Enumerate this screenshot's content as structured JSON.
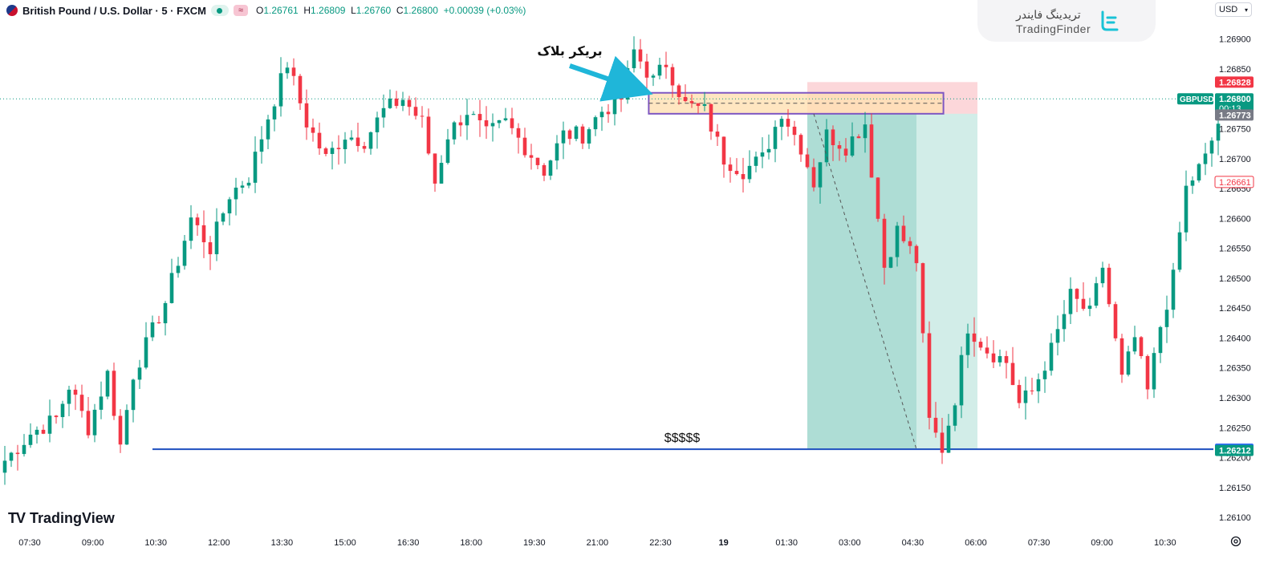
{
  "header": {
    "symbol_title": "British Pound / U.S. Dollar · 5 · FXCM",
    "open_label": "O",
    "open": "1.26761",
    "high_label": "H",
    "high": "1.26809",
    "low_label": "L",
    "low": "1.26760",
    "close_label": "C",
    "close": "1.26800",
    "change": "+0.00039 (+0.03%)"
  },
  "brand": {
    "name_fa": "تریدینگ فایندر",
    "name_en": "TradingFinder"
  },
  "currency_button": "USD",
  "footer_brand": "TradingView",
  "colors": {
    "up": "#089981",
    "down": "#f23645",
    "level": "#2962ff"
  },
  "chart_data": {
    "type": "candlestick",
    "symbol": "GBPUSD",
    "timeframe": "5",
    "ylim": [
      1.2608,
      1.26925
    ],
    "y_ticks": [
      "1.26900",
      "1.26850",
      "1.26800",
      "1.26750",
      "1.26700",
      "1.26650",
      "1.26600",
      "1.26550",
      "1.26500",
      "1.26450",
      "1.26400",
      "1.26350",
      "1.26300",
      "1.26250",
      "1.26200",
      "1.26150",
      "1.26100"
    ],
    "x_ticks": [
      "07:30",
      "09:00",
      "10:30",
      "12:00",
      "13:30",
      "15:00",
      "16:30",
      "18:00",
      "19:30",
      "21:00",
      "22:30",
      "19",
      "01:30",
      "03:00",
      "04:30",
      "06:00",
      "07:30",
      "09:00",
      "10:30"
    ],
    "price_path": [
      [
        0,
        1.26195
      ],
      [
        4,
        1.2624
      ],
      [
        8,
        1.26265
      ],
      [
        10,
        1.2632
      ],
      [
        13,
        1.2625
      ],
      [
        16,
        1.2634
      ],
      [
        18,
        1.2622
      ],
      [
        20,
        1.2634
      ],
      [
        25,
        1.2646
      ],
      [
        29,
        1.266
      ],
      [
        32,
        1.2655
      ],
      [
        35,
        1.2664
      ],
      [
        38,
        1.2667
      ],
      [
        41,
        1.2677
      ],
      [
        44,
        1.2686
      ],
      [
        47,
        1.2676
      ],
      [
        50,
        1.267
      ],
      [
        53,
        1.2674
      ],
      [
        56,
        1.2673
      ],
      [
        59,
        1.2678
      ],
      [
        62,
        1.268
      ],
      [
        65,
        1.2676
      ],
      [
        67,
        1.2666
      ],
      [
        69,
        1.2674
      ],
      [
        72,
        1.2678
      ],
      [
        75,
        1.2674
      ],
      [
        78,
        1.2676
      ],
      [
        81,
        1.2672
      ],
      [
        84,
        1.2668
      ],
      [
        87,
        1.2674
      ],
      [
        90,
        1.2674
      ],
      [
        93,
        1.2678
      ],
      [
        96,
        1.268
      ],
      [
        98,
        1.2688
      ],
      [
        101,
        1.2683
      ],
      [
        103,
        1.2686
      ],
      [
        106,
        1.2679
      ],
      [
        109,
        1.2678
      ],
      [
        112,
        1.267
      ],
      [
        115,
        1.2668
      ],
      [
        118,
        1.267
      ],
      [
        121,
        1.2678
      ],
      [
        124,
        1.2672
      ],
      [
        126,
        1.2666
      ],
      [
        128,
        1.2674
      ],
      [
        131,
        1.2672
      ],
      [
        134,
        1.2676
      ],
      [
        137,
        1.2652
      ],
      [
        139,
        1.2658
      ],
      [
        142,
        1.2653
      ],
      [
        144,
        1.2626
      ],
      [
        146,
        1.26215
      ],
      [
        148,
        1.263
      ],
      [
        150,
        1.2642
      ],
      [
        153,
        1.2638
      ],
      [
        156,
        1.2636
      ],
      [
        158,
        1.2629
      ],
      [
        160,
        1.2631
      ],
      [
        163,
        1.2638
      ],
      [
        166,
        1.2647
      ],
      [
        169,
        1.2644
      ],
      [
        171,
        1.2652
      ],
      [
        174,
        1.2633
      ],
      [
        176,
        1.264
      ],
      [
        178,
        1.2631
      ],
      [
        180,
        1.2642
      ],
      [
        182,
        1.265
      ],
      [
        184,
        1.2665
      ],
      [
        187,
        1.267
      ],
      [
        189,
        1.2676
      ],
      [
        190,
        1.2666
      ]
    ],
    "levels": {
      "last": 1.268,
      "high_box": 1.26828,
      "breaker_mid": 1.26773,
      "intermediate": 1.26661,
      "liquidity_top": 1.26214,
      "liquidity_bottom": 1.26212
    },
    "price_labels": [
      {
        "text": "1.26828",
        "price": 1.26828,
        "color": "#f23645"
      },
      {
        "text": "1.26800",
        "price": 1.268,
        "color": "#089981"
      },
      {
        "text": "1.26773",
        "price": 1.26773,
        "color": "#787b86"
      },
      {
        "text": "1.26661",
        "price": 1.26661,
        "color": "outline"
      },
      {
        "text": "1.26214",
        "price": 1.26214,
        "color": "#2962ff"
      },
      {
        "text": "1.26212",
        "price": 1.26212,
        "color": "#089981"
      }
    ],
    "ticker_label": "GBPUSD",
    "countdown": "00:13",
    "annotations": {
      "breaker_label": "بریکر بلاک",
      "liquidity_label": "$$$$$"
    },
    "breaker_block": {
      "top": 1.2681,
      "bottom": 1.26775
    },
    "position": {
      "entry": 1.26775,
      "stop": 1.26828,
      "target": 1.26214
    },
    "grid": false,
    "candles_drawn": 190
  }
}
